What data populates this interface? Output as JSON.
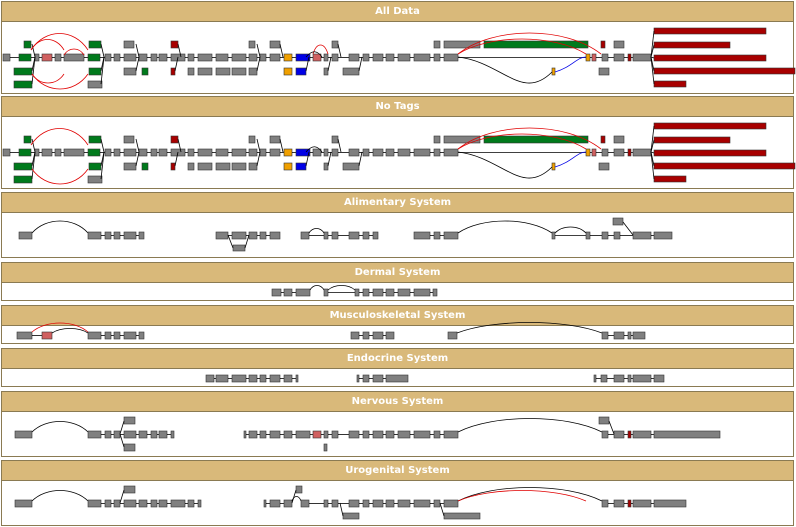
{
  "colors": {
    "header_bg": "#d9b97a",
    "header_text": "#ffffff",
    "node_default": "#808080",
    "node_green": "#007a1c",
    "node_red": "#a80000",
    "node_blue": "#0000e6",
    "node_orange": "#f0a000",
    "node_pink": "#d06060",
    "edge_black": "#000000",
    "edge_red": "#e00000",
    "edge_blue": "#0000e6"
  },
  "panels": [
    {
      "id": "all-data",
      "title": "All Data"
    },
    {
      "id": "no-tags",
      "title": "No Tags"
    },
    {
      "id": "alimentary",
      "title": "Alimentary System"
    },
    {
      "id": "dermal",
      "title": "Dermal System"
    },
    {
      "id": "musculoskeletal",
      "title": "Musculoskeletal System"
    },
    {
      "id": "endocrine",
      "title": "Endocrine System"
    },
    {
      "id": "nervous",
      "title": "Nervous System"
    },
    {
      "id": "urogenital",
      "title": "Urogenital System"
    }
  ]
}
